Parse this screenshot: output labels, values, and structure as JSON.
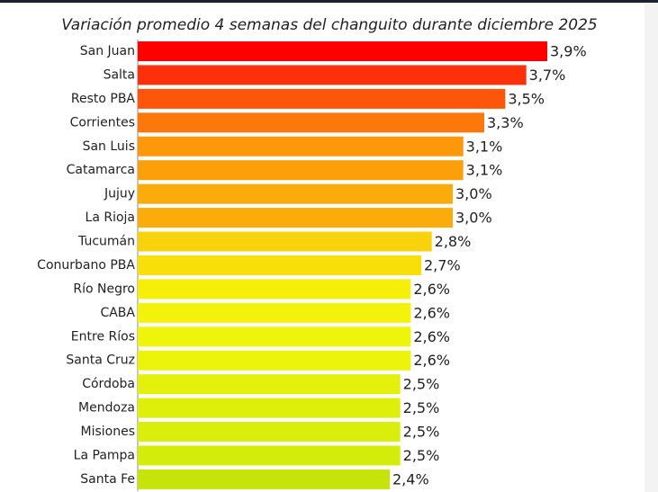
{
  "chart_data": {
    "type": "bar",
    "orientation": "horizontal",
    "title": "Variación promedio 4 semanas del changuito durante diciembre 2025",
    "categories": [
      "San Juan",
      "Salta",
      "Resto PBA",
      "Corrientes",
      "San Luis",
      "Catamarca",
      "Jujuy",
      "La Rioja",
      "Tucumán",
      "Conurbano PBA",
      "Río Negro",
      "CABA",
      "Entre Ríos",
      "Santa Cruz",
      "Córdoba",
      "Mendoza",
      "Misiones",
      "La Pampa",
      "Santa Fe"
    ],
    "values": [
      3.9,
      3.7,
      3.5,
      3.3,
      3.1,
      3.1,
      3.0,
      3.0,
      2.8,
      2.7,
      2.6,
      2.6,
      2.6,
      2.6,
      2.5,
      2.5,
      2.5,
      2.5,
      2.4
    ],
    "value_labels": [
      "3,9%",
      "3,7%",
      "3,5%",
      "3,3%",
      "3,1%",
      "3,1%",
      "3,0%",
      "3,0%",
      "2,8%",
      "2,7%",
      "2,6%",
      "2,6%",
      "2,6%",
      "2,6%",
      "2,5%",
      "2,5%",
      "2,5%",
      "2,5%",
      "2,4%"
    ],
    "colors": [
      "#ff0000",
      "#fc300a",
      "#fd560a",
      "#fd780a",
      "#fc980a",
      "#fca00a",
      "#fbab0a",
      "#fbab0a",
      "#f8d20a",
      "#f8df0a",
      "#f6ef0a",
      "#f2f20a",
      "#eef40a",
      "#ecf40a",
      "#e3f00a",
      "#def00a",
      "#d9ee0a",
      "#d3ec0a",
      "#c6e40a"
    ]
  }
}
